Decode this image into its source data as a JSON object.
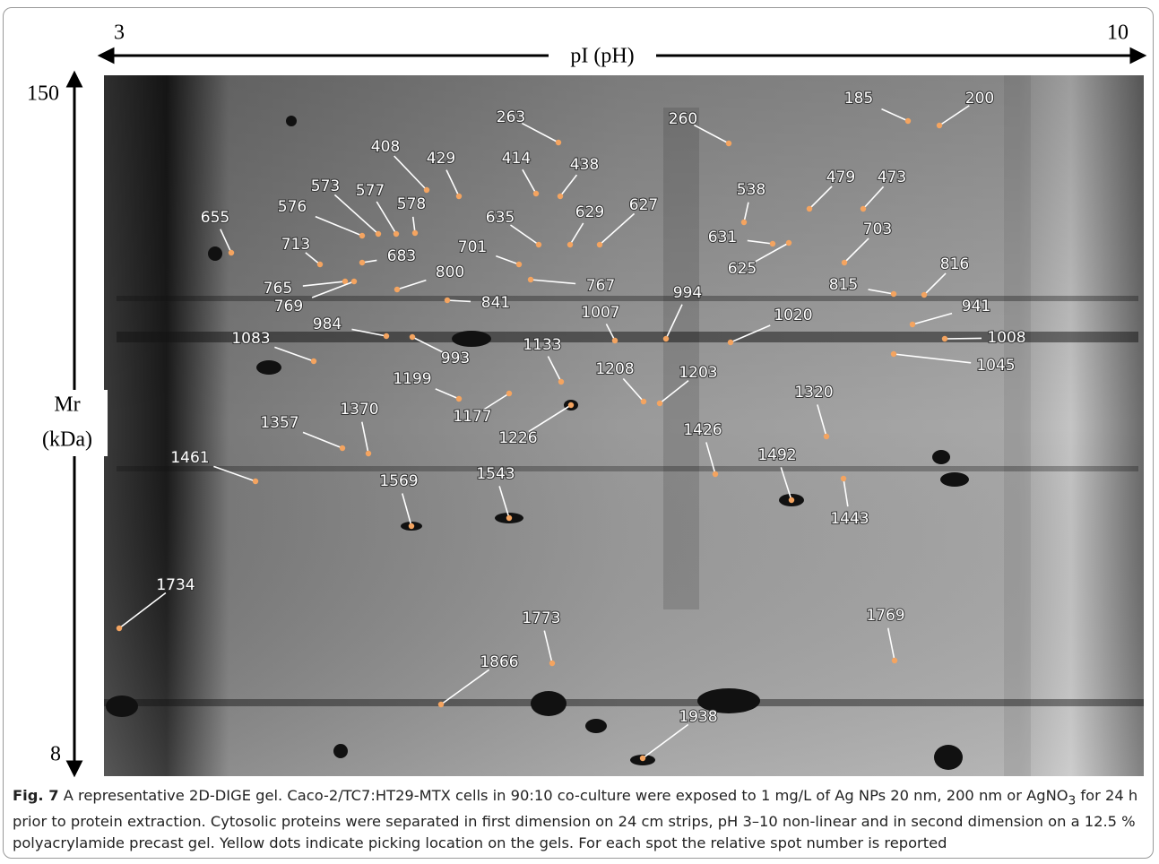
{
  "axes": {
    "x_min": "3",
    "x_max": "10",
    "x_label": "pI (pH)",
    "y_max": "150",
    "y_min": "8",
    "y_label_line1": "Mr",
    "y_label_line2": "(kDa)"
  },
  "spots": [
    "263",
    "260",
    "185",
    "200",
    "408",
    "429",
    "414",
    "438",
    "538",
    "479",
    "473",
    "573",
    "577",
    "578",
    "576",
    "635",
    "629",
    "627",
    "655",
    "631",
    "625",
    "713",
    "683",
    "701",
    "703",
    "816",
    "800",
    "767",
    "765",
    "769",
    "815",
    "841",
    "994",
    "1007",
    "1020",
    "941",
    "984",
    "993",
    "1008",
    "1083",
    "1045",
    "1133",
    "1199",
    "1208",
    "1203",
    "1177",
    "1226",
    "1320",
    "1357",
    "1370",
    "1426",
    "1461",
    "1492",
    "1443",
    "1569",
    "1543",
    "1734",
    "1773",
    "1769",
    "1866",
    "1938"
  ],
  "caption": {
    "label": "Fig. 7",
    "text_before_subscript": " A representative 2D-DIGE gel. Caco-2/TC7:HT29-MTX cells in 90:10 co-culture were exposed to 1 mg/L of Ag NPs 20 nm, 200 nm or AgNO",
    "subscript": "3",
    "text_after_subscript": " for 24 h prior to protein extraction. Cytosolic proteins were separated in first dimension on 24 cm strips, pH 3–10 non-linear and in second dimension on a 12.5 % polyacrylamide precast gel. Yellow dots indicate picking location on the gels. For each spot the relative spot number is reported"
  }
}
